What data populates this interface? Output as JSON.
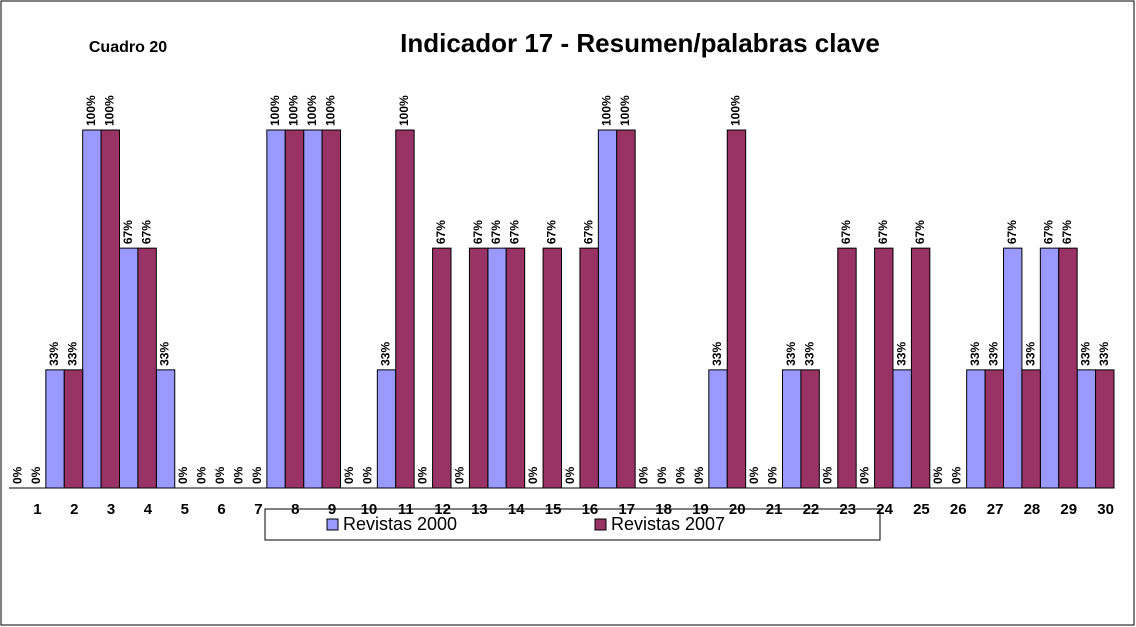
{
  "chart_data": {
    "type": "bar",
    "title": "Indicador 17 -  Resumen/palabras clave",
    "annotation": "Cuadro 20",
    "categories": [
      "1",
      "2",
      "3",
      "4",
      "5",
      "6",
      "7",
      "8",
      "9",
      "10",
      "11",
      "12",
      "13",
      "14",
      "15",
      "16",
      "17",
      "18",
      "19",
      "20",
      "21",
      "22",
      "23",
      "24",
      "25",
      "26",
      "27",
      "28",
      "29",
      "30"
    ],
    "series": [
      {
        "name": "Revistas 2000",
        "color": "#9999ff",
        "values": [
          0,
          33,
          100,
          67,
          33,
          0,
          0,
          100,
          100,
          0,
          33,
          0,
          0,
          67,
          0,
          0,
          100,
          0,
          0,
          33,
          0,
          33,
          0,
          0,
          33,
          0,
          33,
          67,
          67,
          33
        ],
        "value_labels": [
          "0%",
          "33%",
          "100%",
          "67%",
          "33%",
          "0%",
          "0%",
          "100%",
          "100%",
          "0%",
          "33%",
          "0%",
          "0%",
          "67%",
          "0%",
          "0%",
          "100%",
          "0%",
          "0%",
          "33%",
          "0%",
          "33%",
          "0%",
          "0%",
          "33%",
          "0%",
          "33%",
          "67%",
          "67%",
          "33%"
        ]
      },
      {
        "name": "Revistas 2007",
        "color": "#993366",
        "values": [
          0,
          33,
          100,
          67,
          0,
          0,
          0,
          100,
          100,
          0,
          100,
          67,
          67,
          67,
          67,
          67,
          100,
          0,
          0,
          100,
          0,
          33,
          67,
          67,
          67,
          0,
          33,
          33,
          67,
          33
        ],
        "value_labels": [
          "0%",
          "33%",
          "100%",
          "67%",
          "0%",
          "0%",
          "0%",
          "100%",
          "100%",
          "0%",
          "100%",
          "67%",
          "67%",
          "67%",
          "67%",
          "67%",
          "100%",
          "0%",
          "0%",
          "100%",
          "0%",
          "33%",
          "67%",
          "67%",
          "67%",
          "0%",
          "33%",
          "33%",
          "67%",
          "33%"
        ]
      }
    ],
    "ylim": [
      0,
      100
    ],
    "legend": "bottom"
  }
}
